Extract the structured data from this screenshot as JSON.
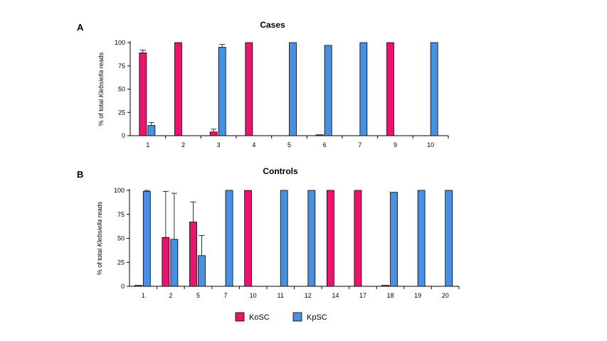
{
  "colors": {
    "KoSC": "#E8156E",
    "KpSC": "#4A90E2"
  },
  "legend": [
    {
      "key": "KoSC",
      "label": "KoSC"
    },
    {
      "key": "KpSC",
      "label": "KpSC"
    }
  ],
  "chart_data": [
    {
      "type": "bar",
      "panel": "A",
      "title": "Cases",
      "ylabel_prefix": "% of total ",
      "ylabel_italic": "Klebsiella",
      "ylabel_suffix": " reads",
      "ylim": [
        0,
        100
      ],
      "yticks": [
        0,
        25,
        50,
        75,
        100
      ],
      "categories": [
        "1",
        "2",
        "3",
        "4",
        "5",
        "6",
        "7",
        "9",
        "10"
      ],
      "series": [
        {
          "name": "KoSC",
          "values": [
            89,
            100,
            4,
            100,
            0,
            1,
            0,
            100,
            0
          ],
          "errors": [
            3,
            0,
            3,
            0,
            0,
            0,
            0,
            0,
            0
          ]
        },
        {
          "name": "KpSC",
          "values": [
            11,
            0,
            95,
            0,
            100,
            97,
            100,
            0,
            100
          ],
          "errors": [
            3,
            0,
            3,
            0,
            0,
            0,
            0,
            0,
            0
          ]
        }
      ],
      "grid": false
    },
    {
      "type": "bar",
      "panel": "B",
      "title": "Controls",
      "ylabel_prefix": "% of total ",
      "ylabel_italic": "Klebsiella",
      "ylabel_suffix": " reads",
      "ylim": [
        0,
        100
      ],
      "yticks": [
        0,
        25,
        50,
        75,
        100
      ],
      "categories": [
        "1",
        "2",
        "5",
        "7",
        "10",
        "11",
        "12",
        "14",
        "17",
        "18",
        "19",
        "20"
      ],
      "series": [
        {
          "name": "KoSC",
          "values": [
            1,
            51,
            67,
            0,
            100,
            0,
            0,
            100,
            100,
            1,
            0,
            0
          ],
          "errors": [
            0,
            48,
            21,
            0,
            0,
            0,
            0,
            0,
            0,
            0,
            0,
            0
          ]
        },
        {
          "name": "KpSC",
          "values": [
            99,
            49,
            32,
            100,
            0,
            100,
            100,
            0,
            0,
            98,
            100,
            100
          ],
          "errors": [
            1,
            48,
            21,
            0,
            0,
            0,
            0,
            0,
            0,
            0,
            0,
            0
          ]
        }
      ],
      "grid": false
    }
  ]
}
